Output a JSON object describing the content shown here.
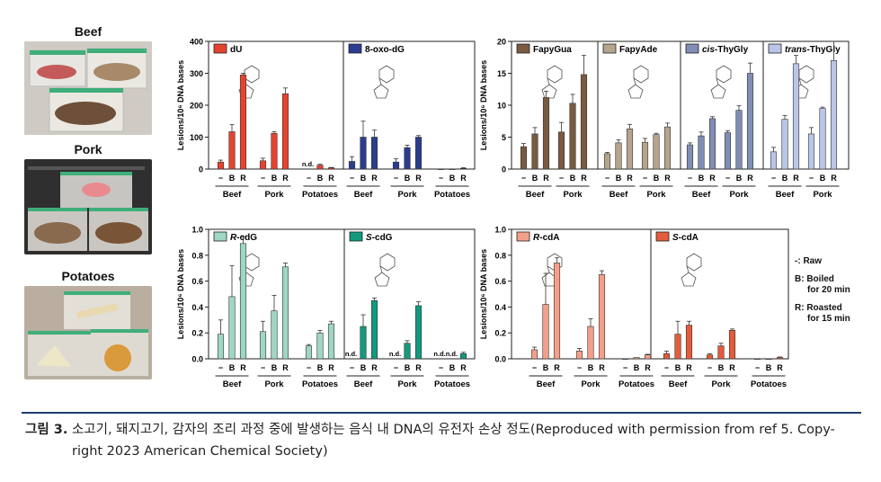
{
  "photos": [
    {
      "label": "Beef"
    },
    {
      "label": "Pork"
    },
    {
      "label": "Potatoes"
    }
  ],
  "key": {
    "raw": "-: Raw",
    "boiled_1": "B: Boiled",
    "boiled_2": "for 20 min",
    "roasted_1": "R: Roasted",
    "roasted_2": "for 15 min"
  },
  "caption": {
    "lead": "그림 3.",
    "line1": "소고기, 돼지고기, 감자의 조리 과정 중에 발생하는 음식 내 DNA의 유전자 손상 정도(Reproduced with permission from ref 5. Copy-",
    "line2": "right 2023 American Chemical Society)"
  },
  "chart_data": [
    {
      "id": "A",
      "type": "bar",
      "ylabel": "Lesions/10⁶ DNA bases",
      "ylim": [
        0,
        400
      ],
      "yticks": [
        0,
        100,
        200,
        300,
        400
      ],
      "treatments": [
        "−",
        "B",
        "R"
      ],
      "panels": [
        {
          "name": "dU",
          "color": "#e5432f",
          "foods": [
            "Beef",
            "Pork",
            "Potatoes"
          ],
          "values": [
            [
              22,
              117,
              295
            ],
            [
              26,
              112,
              236
            ],
            [
              null,
              12,
              4
            ]
          ],
          "errors": [
            [
              6,
              22,
              5
            ],
            [
              8,
              5,
              18
            ],
            [
              null,
              3,
              1
            ]
          ],
          "nd": [
            [
              false,
              false,
              false
            ],
            [
              false,
              false,
              false
            ],
            [
              true,
              false,
              false
            ]
          ]
        },
        {
          "name": "8-oxo-dG",
          "color": "#2b3d8f",
          "foods": [
            "Beef",
            "Pork",
            "Potatoes"
          ],
          "values": [
            [
              24,
              100,
              100
            ],
            [
              22,
              67,
              100
            ],
            [
              0,
              0,
              2
            ]
          ],
          "errors": [
            [
              15,
              50,
              22
            ],
            [
              10,
              8,
              5
            ],
            [
              0,
              0,
              2
            ]
          ],
          "nd": [
            [
              false,
              false,
              false
            ],
            [
              false,
              false,
              false
            ],
            [
              false,
              false,
              false
            ]
          ]
        }
      ]
    },
    {
      "id": "B",
      "type": "bar",
      "ylabel": "Lesions/10⁶ DNA bases",
      "ylim": [
        0,
        20
      ],
      "yticks": [
        0,
        5,
        10,
        15,
        20
      ],
      "treatments": [
        "−",
        "B",
        "R"
      ],
      "panels": [
        {
          "name": "FapyGua",
          "color": "#7a5a41",
          "foods": [
            "Beef",
            "Pork"
          ],
          "values": [
            [
              3.5,
              5.5,
              11.2
            ],
            [
              5.8,
              10.3,
              14.8
            ]
          ],
          "errors": [
            [
              0.5,
              1.0,
              1.0
            ],
            [
              1.5,
              1.4,
              3.0
            ]
          ]
        },
        {
          "name": "FapyAde",
          "color": "#b7a48d",
          "foods": [
            "Beef",
            "Pork"
          ],
          "values": [
            [
              2.4,
              4.1,
              6.3
            ],
            [
              4.2,
              5.4,
              6.6
            ]
          ],
          "errors": [
            [
              0.2,
              0.5,
              0.7
            ],
            [
              0.6,
              0.2,
              0.6
            ]
          ]
        },
        {
          "name": "cis-ThyGly",
          "prefix": "cis",
          "suffix": "-ThyGly",
          "color": "#7f8eb4",
          "foods": [
            "Beef",
            "Pork"
          ],
          "values": [
            [
              3.8,
              5.2,
              7.9
            ],
            [
              5.7,
              9.2,
              15.0
            ]
          ],
          "errors": [
            [
              0.3,
              0.6,
              0.3
            ],
            [
              0.3,
              0.7,
              1.6
            ]
          ]
        },
        {
          "name": "trans-ThyGly",
          "prefix": "trans",
          "suffix": "-ThyGly",
          "color": "#b9c6e8",
          "foods": [
            "Beef",
            "Pork"
          ],
          "values": [
            [
              2.7,
              7.8,
              16.5
            ],
            [
              5.5,
              9.5,
              17.0
            ]
          ],
          "errors": [
            [
              0.7,
              0.6,
              1.3
            ],
            [
              1.0,
              0.2,
              3.0
            ]
          ]
        }
      ]
    },
    {
      "id": "C",
      "type": "bar",
      "ylabel": "Lesions/10⁶ DNA bases",
      "ylim": [
        0,
        1.0
      ],
      "yticks": [
        0.0,
        0.2,
        0.4,
        0.6,
        0.8,
        1.0
      ],
      "treatments": [
        "−",
        "B",
        "R"
      ],
      "panels": [
        {
          "name": "R-cdG",
          "prefix": "R",
          "suffix": "-cdG",
          "color": "#9fd6c4",
          "foods": [
            "Beef",
            "Pork",
            "Potatoes"
          ],
          "values": [
            [
              0.19,
              0.48,
              0.89
            ],
            [
              0.21,
              0.37,
              0.71
            ],
            [
              0.1,
              0.2,
              0.27
            ]
          ],
          "errors": [
            [
              0.11,
              0.24,
              0.05
            ],
            [
              0.08,
              0.12,
              0.03
            ],
            [
              0.01,
              0.02,
              0.02
            ]
          ],
          "nd": [
            [
              false,
              false,
              false
            ],
            [
              false,
              false,
              false
            ],
            [
              false,
              false,
              false
            ]
          ]
        },
        {
          "name": "S-cdG",
          "prefix": "S",
          "suffix": "-cdG",
          "color": "#139a7e",
          "foods": [
            "Beef",
            "Pork",
            "Potatoes"
          ],
          "values": [
            [
              null,
              0.25,
              0.45
            ],
            [
              null,
              0.12,
              0.41
            ],
            [
              null,
              null,
              0.04
            ]
          ],
          "errors": [
            [
              null,
              0.09,
              0.02
            ],
            [
              null,
              0.02,
              0.03
            ],
            [
              null,
              null,
              0.01
            ]
          ],
          "nd": [
            [
              true,
              false,
              false
            ],
            [
              true,
              false,
              false
            ],
            [
              true,
              true,
              false
            ]
          ]
        }
      ]
    },
    {
      "id": "D",
      "type": "bar",
      "ylabel": "Lesions/10⁶ DNA bases",
      "ylim": [
        0,
        1.0
      ],
      "yticks": [
        0.0,
        0.2,
        0.4,
        0.6,
        0.8,
        1.0
      ],
      "treatments": [
        "−",
        "B",
        "R"
      ],
      "panels": [
        {
          "name": "R-cdA",
          "prefix": "R",
          "suffix": "-cdA",
          "color": "#f3a08a",
          "foods": [
            "Beef",
            "Pork",
            "Potatoes"
          ],
          "values": [
            [
              0.07,
              0.42,
              0.74
            ],
            [
              0.06,
              0.25,
              0.65
            ],
            [
              0.0,
              0.01,
              0.03
            ]
          ],
          "errors": [
            [
              0.02,
              0.24,
              0.04
            ],
            [
              0.02,
              0.06,
              0.03
            ],
            [
              0.0,
              0.0,
              0.005
            ]
          ]
        },
        {
          "name": "S-cdA",
          "prefix": "S",
          "suffix": "-cdA",
          "color": "#e35c3b",
          "foods": [
            "Beef",
            "Pork",
            "Potatoes"
          ],
          "values": [
            [
              0.04,
              0.19,
              0.26
            ],
            [
              0.03,
              0.1,
              0.22
            ],
            [
              0.0,
              0.0,
              0.01
            ]
          ],
          "errors": [
            [
              0.02,
              0.1,
              0.03
            ],
            [
              0.01,
              0.02,
              0.01
            ],
            [
              0.0,
              0.0,
              0.004
            ]
          ]
        }
      ]
    }
  ]
}
